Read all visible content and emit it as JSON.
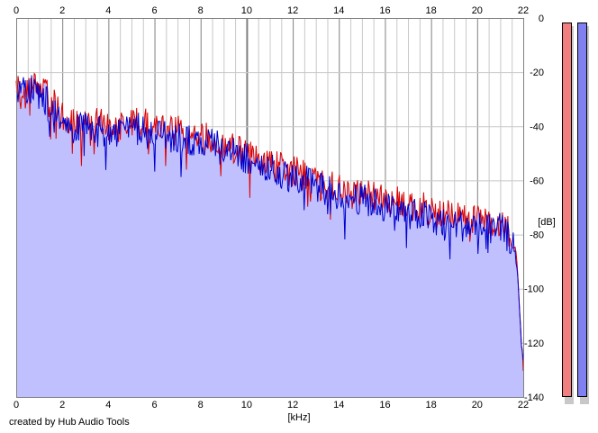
{
  "credit_text": "created by Hub Audio Tools",
  "chart_data": {
    "type": "area",
    "xlabel": "[kHz]",
    "ylabel": "[dB]",
    "xlim": [
      0,
      22
    ],
    "ylim": [
      -140,
      0
    ],
    "x_ticks": [
      0,
      2,
      4,
      6,
      8,
      10,
      12,
      14,
      16,
      18,
      20,
      22
    ],
    "y_ticks": [
      0,
      -20,
      -40,
      -60,
      -80,
      -100,
      -120,
      -140
    ],
    "x_tick_labels": [
      "0",
      "2",
      "4",
      "6",
      "8",
      "10",
      "12",
      "14",
      "16",
      "18",
      "20",
      "22"
    ],
    "y_tick_labels": [
      "0",
      "-20",
      "-40",
      "-60",
      "-80",
      "-100",
      "-120",
      "-140"
    ],
    "grid": true,
    "colors": {
      "background": "#ffffff",
      "fill": "#c0c0ff",
      "grid_light": "#c8c8c8",
      "grid_dark": "#808080",
      "channel_1": "#dd0000",
      "channel_2": "#0000cc",
      "meter_1": "#f08080",
      "meter_2": "#8080f0"
    },
    "series": [
      {
        "color": "#dd0000",
        "x": [
          0,
          0.5,
          1,
          1.5,
          2,
          2.5,
          3,
          3.5,
          4,
          4.5,
          5,
          5.5,
          6,
          6.5,
          7,
          7.5,
          8,
          8.5,
          9,
          9.5,
          10,
          10.5,
          11,
          11.5,
          12,
          12.5,
          13,
          13.5,
          14,
          14.5,
          15,
          15.5,
          16,
          16.5,
          17,
          17.5,
          18,
          18.5,
          19,
          19.5,
          20,
          20.5,
          21,
          21.5,
          21.7,
          21.8,
          21.9,
          22
        ],
        "y": [
          -26,
          -25,
          -24,
          -31,
          -36,
          -38,
          -38,
          -39,
          -40,
          -40,
          -39,
          -39,
          -40,
          -41,
          -42,
          -43,
          -44,
          -45,
          -46,
          -48,
          -50,
          -52,
          -54,
          -55,
          -57,
          -58,
          -60,
          -62,
          -63,
          -64,
          -65,
          -66,
          -67,
          -68,
          -69,
          -70,
          -71,
          -72,
          -73,
          -74,
          -74,
          -75,
          -75,
          -80,
          -88,
          -100,
          -115,
          -130
        ]
      },
      {
        "color": "#0000cc",
        "x": [
          0,
          0.5,
          1,
          1.5,
          2,
          2.5,
          3,
          3.5,
          4,
          4.5,
          5,
          5.5,
          6,
          6.5,
          7,
          7.5,
          8,
          8.5,
          9,
          9.5,
          10,
          10.5,
          11,
          11.5,
          12,
          12.5,
          13,
          13.5,
          14,
          14.5,
          15,
          15.5,
          16,
          16.5,
          17,
          17.5,
          18,
          18.5,
          19,
          19.5,
          20,
          20.5,
          21,
          21.5,
          21.7,
          21.8,
          21.9,
          22
        ],
        "y": [
          -27,
          -27,
          -26,
          -34,
          -39,
          -41,
          -41,
          -42,
          -42,
          -42,
          -41,
          -41,
          -42,
          -43,
          -44,
          -45,
          -46,
          -47,
          -48,
          -50,
          -52,
          -54,
          -56,
          -57,
          -59,
          -60,
          -62,
          -64,
          -65,
          -66,
          -67,
          -68,
          -70,
          -71,
          -72,
          -73,
          -74,
          -75,
          -76,
          -77,
          -77,
          -78,
          -78,
          -82,
          -90,
          -102,
          -117,
          -128
        ]
      }
    ]
  }
}
